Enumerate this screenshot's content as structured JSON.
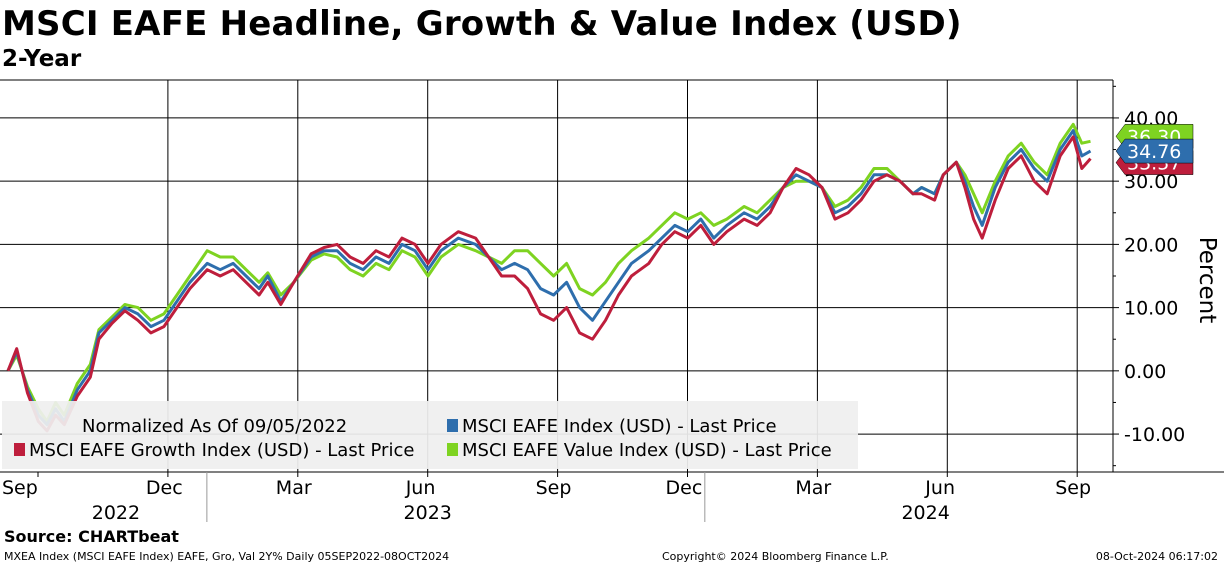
{
  "header": {
    "title": "MSCI EAFE Headline, Growth & Value Index (USD)",
    "subtitle": "2-Year"
  },
  "footer": {
    "source": "Source: CHARTbeat",
    "left": "MXEA Index (MSCI EAFE Index) EAFE, Gro, Val 2Y% Daily 05SEP2022-08OCT2024",
    "center": "Copyright© 2024 Bloomberg Finance L.P.",
    "right": "08-Oct-2024 06:17:02"
  },
  "legend": {
    "note": "Normalized As Of 09/05/2022",
    "position": "bottom-left"
  },
  "colors": {
    "headline": "#2e6ead",
    "growth": "#be1e3c",
    "value": "#7ed321",
    "grid": "#000000"
  },
  "chart_data": {
    "type": "line",
    "ylabel": "Percent",
    "ylim": [
      -16,
      46
    ],
    "yticks": [
      "40.00",
      "30.00",
      "20.00",
      "10.00",
      "0.00",
      "-10.00"
    ],
    "ytick_values": [
      40,
      30,
      20,
      10,
      0,
      -10
    ],
    "grid": true,
    "month_ticks": [
      {
        "label": "Sep",
        "t": 0.0
      },
      {
        "label": "Dec",
        "t": 3.0
      },
      {
        "label": "Mar",
        "t": 6.0
      },
      {
        "label": "Jun",
        "t": 9.0
      },
      {
        "label": "Sep",
        "t": 12.0
      },
      {
        "label": "Dec",
        "t": 15.0
      },
      {
        "label": "Mar",
        "t": 18.0
      },
      {
        "label": "Jun",
        "t": 21.0
      },
      {
        "label": "Sep",
        "t": 24.0
      }
    ],
    "year_labels": [
      {
        "label": "2022",
        "t": 1.8
      },
      {
        "label": "2023",
        "t": 9.0
      },
      {
        "label": "2024",
        "t": 20.5
      }
    ],
    "year_dividers": [
      3.9,
      15.4
    ],
    "x_unit": "months since Sep 2022",
    "series": [
      {
        "name": "MSCI EAFE Index (USD) - Last Price",
        "key": "headline",
        "last": "34.76",
        "points": [
          [
            0,
            0
          ],
          [
            0.2,
            3
          ],
          [
            0.45,
            -3
          ],
          [
            0.7,
            -7
          ],
          [
            0.9,
            -8.5
          ],
          [
            1.1,
            -6
          ],
          [
            1.3,
            -8
          ],
          [
            1.6,
            -3
          ],
          [
            1.9,
            0
          ],
          [
            2.1,
            6
          ],
          [
            2.4,
            8
          ],
          [
            2.7,
            10
          ],
          [
            3.0,
            9
          ],
          [
            3.3,
            7
          ],
          [
            3.6,
            8
          ],
          [
            3.9,
            11
          ],
          [
            4.2,
            14
          ],
          [
            4.6,
            17
          ],
          [
            4.9,
            16
          ],
          [
            5.2,
            17
          ],
          [
            5.5,
            15
          ],
          [
            5.8,
            13
          ],
          [
            6.0,
            15
          ],
          [
            6.3,
            11
          ],
          [
            6.6,
            14
          ],
          [
            7.0,
            18
          ],
          [
            7.3,
            19
          ],
          [
            7.6,
            19
          ],
          [
            7.9,
            17
          ],
          [
            8.2,
            16
          ],
          [
            8.5,
            18
          ],
          [
            8.8,
            17
          ],
          [
            9.1,
            20
          ],
          [
            9.4,
            19
          ],
          [
            9.7,
            16
          ],
          [
            10.0,
            19
          ],
          [
            10.4,
            21
          ],
          [
            10.8,
            20
          ],
          [
            11.1,
            18
          ],
          [
            11.4,
            16
          ],
          [
            11.7,
            17
          ],
          [
            12.0,
            16
          ],
          [
            12.3,
            13
          ],
          [
            12.6,
            12
          ],
          [
            12.9,
            14
          ],
          [
            13.2,
            10
          ],
          [
            13.5,
            8
          ],
          [
            13.8,
            11
          ],
          [
            14.1,
            14
          ],
          [
            14.4,
            17
          ],
          [
            14.8,
            19
          ],
          [
            15.1,
            21
          ],
          [
            15.4,
            23
          ],
          [
            15.7,
            22
          ],
          [
            16.0,
            24
          ],
          [
            16.3,
            21
          ],
          [
            16.6,
            23
          ],
          [
            17.0,
            25
          ],
          [
            17.3,
            24
          ],
          [
            17.6,
            26
          ],
          [
            17.9,
            29
          ],
          [
            18.2,
            31
          ],
          [
            18.5,
            30
          ],
          [
            18.8,
            29
          ],
          [
            19.1,
            25
          ],
          [
            19.4,
            26
          ],
          [
            19.7,
            28
          ],
          [
            20.0,
            31
          ],
          [
            20.3,
            31
          ],
          [
            20.6,
            30
          ],
          [
            20.9,
            28
          ],
          [
            21.1,
            29
          ],
          [
            21.4,
            28
          ],
          [
            21.6,
            31
          ],
          [
            21.9,
            33
          ],
          [
            22.1,
            30
          ],
          [
            22.3,
            26
          ],
          [
            22.5,
            23
          ],
          [
            22.8,
            29
          ],
          [
            23.1,
            33
          ],
          [
            23.4,
            35
          ],
          [
            23.7,
            32
          ],
          [
            24.0,
            30
          ],
          [
            24.3,
            35
          ],
          [
            24.6,
            38
          ],
          [
            24.8,
            34
          ],
          [
            25.0,
            34.76
          ]
        ]
      },
      {
        "name": "MSCI EAFE Growth Index (USD) - Last Price",
        "key": "growth",
        "last": "33.57",
        "points": [
          [
            0,
            0
          ],
          [
            0.2,
            3.5
          ],
          [
            0.45,
            -3.5
          ],
          [
            0.7,
            -8
          ],
          [
            0.9,
            -9.5
          ],
          [
            1.1,
            -7
          ],
          [
            1.3,
            -8.5
          ],
          [
            1.6,
            -4
          ],
          [
            1.9,
            -1
          ],
          [
            2.1,
            5
          ],
          [
            2.4,
            7.5
          ],
          [
            2.7,
            9.5
          ],
          [
            3.0,
            8
          ],
          [
            3.3,
            6
          ],
          [
            3.6,
            7
          ],
          [
            3.9,
            10
          ],
          [
            4.2,
            13
          ],
          [
            4.6,
            16
          ],
          [
            4.9,
            15
          ],
          [
            5.2,
            16
          ],
          [
            5.5,
            14
          ],
          [
            5.8,
            12
          ],
          [
            6.0,
            14
          ],
          [
            6.3,
            10.5
          ],
          [
            6.6,
            14
          ],
          [
            7.0,
            18.5
          ],
          [
            7.3,
            19.5
          ],
          [
            7.6,
            20
          ],
          [
            7.9,
            18
          ],
          [
            8.2,
            17
          ],
          [
            8.5,
            19
          ],
          [
            8.8,
            18
          ],
          [
            9.1,
            21
          ],
          [
            9.4,
            20
          ],
          [
            9.7,
            17
          ],
          [
            10.0,
            20
          ],
          [
            10.4,
            22
          ],
          [
            10.8,
            21
          ],
          [
            11.1,
            18
          ],
          [
            11.4,
            15
          ],
          [
            11.7,
            15
          ],
          [
            12.0,
            13
          ],
          [
            12.3,
            9
          ],
          [
            12.6,
            8
          ],
          [
            12.9,
            10
          ],
          [
            13.2,
            6
          ],
          [
            13.5,
            5
          ],
          [
            13.8,
            8
          ],
          [
            14.1,
            12
          ],
          [
            14.4,
            15
          ],
          [
            14.8,
            17
          ],
          [
            15.1,
            20
          ],
          [
            15.4,
            22
          ],
          [
            15.7,
            21
          ],
          [
            16.0,
            23
          ],
          [
            16.3,
            20
          ],
          [
            16.6,
            22
          ],
          [
            17.0,
            24
          ],
          [
            17.3,
            23
          ],
          [
            17.6,
            25
          ],
          [
            17.9,
            29
          ],
          [
            18.2,
            32
          ],
          [
            18.5,
            31
          ],
          [
            18.8,
            29
          ],
          [
            19.1,
            24
          ],
          [
            19.4,
            25
          ],
          [
            19.7,
            27
          ],
          [
            20.0,
            30
          ],
          [
            20.3,
            31
          ],
          [
            20.6,
            30
          ],
          [
            20.9,
            28
          ],
          [
            21.1,
            28
          ],
          [
            21.4,
            27
          ],
          [
            21.6,
            31
          ],
          [
            21.9,
            33
          ],
          [
            22.1,
            29
          ],
          [
            22.3,
            24
          ],
          [
            22.5,
            21
          ],
          [
            22.8,
            27
          ],
          [
            23.1,
            32
          ],
          [
            23.4,
            34
          ],
          [
            23.7,
            30
          ],
          [
            24.0,
            28
          ],
          [
            24.3,
            34
          ],
          [
            24.6,
            37
          ],
          [
            24.8,
            32
          ],
          [
            25.0,
            33.57
          ]
        ]
      },
      {
        "name": "MSCI EAFE Value Index (USD) - Last Price",
        "key": "value",
        "last": "36.30",
        "points": [
          [
            0,
            0
          ],
          [
            0.2,
            2.5
          ],
          [
            0.45,
            -2.5
          ],
          [
            0.7,
            -6
          ],
          [
            0.9,
            -8
          ],
          [
            1.1,
            -5
          ],
          [
            1.3,
            -7
          ],
          [
            1.6,
            -2
          ],
          [
            1.9,
            1
          ],
          [
            2.1,
            6.5
          ],
          [
            2.4,
            8.5
          ],
          [
            2.7,
            10.5
          ],
          [
            3.0,
            10
          ],
          [
            3.3,
            8
          ],
          [
            3.6,
            9
          ],
          [
            3.9,
            12
          ],
          [
            4.2,
            15
          ],
          [
            4.6,
            19
          ],
          [
            4.9,
            18
          ],
          [
            5.2,
            18
          ],
          [
            5.5,
            16
          ],
          [
            5.8,
            14
          ],
          [
            6.0,
            15.5
          ],
          [
            6.3,
            12
          ],
          [
            6.6,
            14
          ],
          [
            7.0,
            17.5
          ],
          [
            7.3,
            18.5
          ],
          [
            7.6,
            18
          ],
          [
            7.9,
            16
          ],
          [
            8.2,
            15
          ],
          [
            8.5,
            17
          ],
          [
            8.8,
            16
          ],
          [
            9.1,
            19
          ],
          [
            9.4,
            18
          ],
          [
            9.7,
            15
          ],
          [
            10.0,
            18
          ],
          [
            10.4,
            20
          ],
          [
            10.8,
            19
          ],
          [
            11.1,
            18
          ],
          [
            11.4,
            17
          ],
          [
            11.7,
            19
          ],
          [
            12.0,
            19
          ],
          [
            12.3,
            17
          ],
          [
            12.6,
            15
          ],
          [
            12.9,
            17
          ],
          [
            13.2,
            13
          ],
          [
            13.5,
            12
          ],
          [
            13.8,
            14
          ],
          [
            14.1,
            17
          ],
          [
            14.4,
            19
          ],
          [
            14.8,
            21
          ],
          [
            15.1,
            23
          ],
          [
            15.4,
            25
          ],
          [
            15.7,
            24
          ],
          [
            16.0,
            25
          ],
          [
            16.3,
            23
          ],
          [
            16.6,
            24
          ],
          [
            17.0,
            26
          ],
          [
            17.3,
            25
          ],
          [
            17.6,
            27
          ],
          [
            17.9,
            29
          ],
          [
            18.2,
            30
          ],
          [
            18.5,
            30
          ],
          [
            18.8,
            29
          ],
          [
            19.1,
            26
          ],
          [
            19.4,
            27
          ],
          [
            19.7,
            29
          ],
          [
            20.0,
            32
          ],
          [
            20.3,
            32
          ],
          [
            20.6,
            30
          ],
          [
            20.9,
            28
          ],
          [
            21.1,
            29
          ],
          [
            21.4,
            28
          ],
          [
            21.6,
            31
          ],
          [
            21.9,
            33
          ],
          [
            22.1,
            31
          ],
          [
            22.3,
            28
          ],
          [
            22.5,
            25
          ],
          [
            22.8,
            30
          ],
          [
            23.1,
            34
          ],
          [
            23.4,
            36
          ],
          [
            23.7,
            33
          ],
          [
            24.0,
            31
          ],
          [
            24.3,
            36
          ],
          [
            24.6,
            39
          ],
          [
            24.8,
            36
          ],
          [
            25.0,
            36.3
          ]
        ]
      }
    ]
  }
}
